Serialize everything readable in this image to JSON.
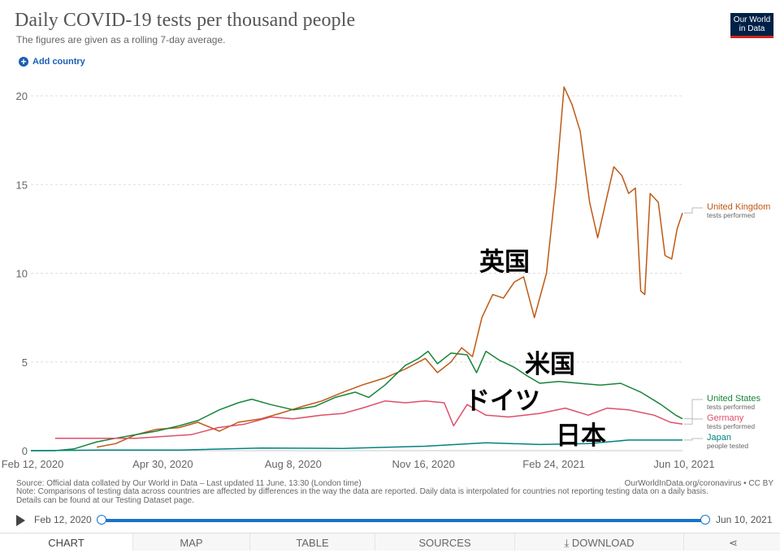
{
  "header": {
    "title": "Daily COVID-19 tests per thousand people",
    "subtitle": "The figures are given as a rolling 7-day average.",
    "logo_line1": "Our World",
    "logo_line2": "in Data",
    "add_country": "Add country"
  },
  "chart_data": {
    "type": "line",
    "title": "Daily COVID-19 tests per thousand people",
    "subtitle": "The figures are given as a rolling 7-day average.",
    "x_ticks": [
      "Feb 12, 2020",
      "Apr 30, 2020",
      "Aug 8, 2020",
      "Nov 16, 2020",
      "Feb 24, 2021",
      "Jun 10, 2021"
    ],
    "xlim": [
      "2020-02-12",
      "2021-06-10"
    ],
    "y_ticks": [
      "0",
      "5",
      "10",
      "15",
      "20"
    ],
    "ylim": [
      0,
      22
    ],
    "grid": "horizontal dotted",
    "series": [
      {
        "name": "United Kingdom",
        "sublabel": "tests performed",
        "color": "#be5915",
        "points": [
          [
            "2020-04-01",
            0.2
          ],
          [
            "2020-04-15",
            0.4
          ],
          [
            "2020-04-30",
            0.9
          ],
          [
            "2020-05-15",
            1.2
          ],
          [
            "2020-06-01",
            1.3
          ],
          [
            "2020-06-15",
            1.6
          ],
          [
            "2020-07-01",
            1.1
          ],
          [
            "2020-07-15",
            1.6
          ],
          [
            "2020-08-01",
            1.8
          ],
          [
            "2020-08-15",
            2.1
          ],
          [
            "2020-09-01",
            2.5
          ],
          [
            "2020-09-15",
            2.8
          ],
          [
            "2020-10-01",
            3.3
          ],
          [
            "2020-10-15",
            3.7
          ],
          [
            "2020-11-01",
            4.1
          ],
          [
            "2020-11-16",
            4.6
          ],
          [
            "2020-12-01",
            5.2
          ],
          [
            "2020-12-10",
            4.4
          ],
          [
            "2020-12-20",
            5.0
          ],
          [
            "2020-12-28",
            5.8
          ],
          [
            "2021-01-05",
            5.3
          ],
          [
            "2021-01-12",
            7.5
          ],
          [
            "2021-01-20",
            8.8
          ],
          [
            "2021-01-28",
            8.6
          ],
          [
            "2021-02-05",
            9.5
          ],
          [
            "2021-02-12",
            9.8
          ],
          [
            "2021-02-20",
            7.5
          ],
          [
            "2021-03-01",
            10.0
          ],
          [
            "2021-03-08",
            15.0
          ],
          [
            "2021-03-14",
            20.5
          ],
          [
            "2021-03-20",
            19.5
          ],
          [
            "2021-03-26",
            18.0
          ],
          [
            "2021-04-02",
            14.0
          ],
          [
            "2021-04-08",
            12.0
          ],
          [
            "2021-04-14",
            14.0
          ],
          [
            "2021-04-20",
            16.0
          ],
          [
            "2021-04-26",
            15.5
          ],
          [
            "2021-05-01",
            14.5
          ],
          [
            "2021-05-06",
            14.8
          ],
          [
            "2021-05-10",
            9.0
          ],
          [
            "2021-05-13",
            8.8
          ],
          [
            "2021-05-17",
            14.5
          ],
          [
            "2021-05-23",
            14.0
          ],
          [
            "2021-05-28",
            11.0
          ],
          [
            "2021-06-02",
            10.8
          ],
          [
            "2021-06-06",
            12.5
          ],
          [
            "2021-06-10",
            13.4
          ]
        ]
      },
      {
        "name": "United States",
        "sublabel": "tests performed",
        "color": "#18843a",
        "points": [
          [
            "2020-02-12",
            0.0
          ],
          [
            "2020-03-01",
            0.0
          ],
          [
            "2020-03-15",
            0.1
          ],
          [
            "2020-04-01",
            0.5
          ],
          [
            "2020-04-15",
            0.7
          ],
          [
            "2020-04-30",
            0.9
          ],
          [
            "2020-05-15",
            1.1
          ],
          [
            "2020-06-01",
            1.4
          ],
          [
            "2020-06-15",
            1.7
          ],
          [
            "2020-07-01",
            2.3
          ],
          [
            "2020-07-15",
            2.7
          ],
          [
            "2020-07-25",
            2.9
          ],
          [
            "2020-08-08",
            2.6
          ],
          [
            "2020-08-25",
            2.3
          ],
          [
            "2020-09-10",
            2.5
          ],
          [
            "2020-09-25",
            3.0
          ],
          [
            "2020-10-10",
            3.3
          ],
          [
            "2020-10-20",
            3.0
          ],
          [
            "2020-11-01",
            3.7
          ],
          [
            "2020-11-16",
            4.8
          ],
          [
            "2020-11-26",
            5.2
          ],
          [
            "2020-12-03",
            5.6
          ],
          [
            "2020-12-10",
            4.9
          ],
          [
            "2020-12-20",
            5.5
          ],
          [
            "2021-01-01",
            5.4
          ],
          [
            "2021-01-08",
            4.4
          ],
          [
            "2021-01-15",
            5.6
          ],
          [
            "2021-01-25",
            5.1
          ],
          [
            "2021-02-05",
            4.7
          ],
          [
            "2021-02-15",
            4.2
          ],
          [
            "2021-02-24",
            3.8
          ],
          [
            "2021-03-10",
            3.9
          ],
          [
            "2021-03-25",
            3.8
          ],
          [
            "2021-04-10",
            3.7
          ],
          [
            "2021-04-25",
            3.8
          ],
          [
            "2021-05-10",
            3.3
          ],
          [
            "2021-05-25",
            2.6
          ],
          [
            "2021-06-05",
            2.0
          ],
          [
            "2021-06-10",
            1.8
          ]
        ]
      },
      {
        "name": "Germany",
        "sublabel": "tests performed",
        "color": "#de4e6a",
        "points": [
          [
            "2020-03-01",
            0.7
          ],
          [
            "2020-03-20",
            0.7
          ],
          [
            "2020-04-10",
            0.7
          ],
          [
            "2020-04-30",
            0.7
          ],
          [
            "2020-05-20",
            0.8
          ],
          [
            "2020-06-10",
            0.9
          ],
          [
            "2020-06-30",
            1.3
          ],
          [
            "2020-07-20",
            1.5
          ],
          [
            "2020-08-08",
            1.9
          ],
          [
            "2020-08-25",
            1.8
          ],
          [
            "2020-09-15",
            2.0
          ],
          [
            "2020-10-01",
            2.1
          ],
          [
            "2020-10-15",
            2.4
          ],
          [
            "2020-11-01",
            2.8
          ],
          [
            "2020-11-16",
            2.7
          ],
          [
            "2020-12-01",
            2.8
          ],
          [
            "2020-12-15",
            2.7
          ],
          [
            "2020-12-22",
            1.4
          ],
          [
            "2021-01-01",
            2.6
          ],
          [
            "2021-01-15",
            2.0
          ],
          [
            "2021-02-01",
            1.9
          ],
          [
            "2021-02-24",
            2.1
          ],
          [
            "2021-03-15",
            2.4
          ],
          [
            "2021-04-01",
            2.0
          ],
          [
            "2021-04-15",
            2.4
          ],
          [
            "2021-05-01",
            2.3
          ],
          [
            "2021-05-20",
            2.0
          ],
          [
            "2021-06-01",
            1.6
          ],
          [
            "2021-06-10",
            1.5
          ]
        ]
      },
      {
        "name": "Japan",
        "sublabel": "people tested",
        "color": "#00847e",
        "points": [
          [
            "2020-02-12",
            0.0
          ],
          [
            "2020-04-01",
            0.03
          ],
          [
            "2020-06-01",
            0.03
          ],
          [
            "2020-08-01",
            0.15
          ],
          [
            "2020-10-01",
            0.13
          ],
          [
            "2020-12-01",
            0.25
          ],
          [
            "2021-01-15",
            0.45
          ],
          [
            "2021-02-24",
            0.35
          ],
          [
            "2021-04-01",
            0.4
          ],
          [
            "2021-05-01",
            0.6
          ],
          [
            "2021-06-10",
            0.6
          ]
        ]
      }
    ]
  },
  "annotations": {
    "uk": "英国",
    "us": "米国",
    "de": "ドイツ",
    "jp": "日本"
  },
  "footer": {
    "source": "Source: Official data collated by Our World in Data – Last updated 11 June, 13:30 (London time)",
    "source_right": "OurWorldInData.org/coronavirus • CC BY",
    "note_line1": "Note: Comparisons of testing data across countries are affected by differences in the way the data are reported. Daily data is interpolated for countries not reporting testing data on a daily basis.",
    "note_line2": "Details can be found at our Testing Dataset page."
  },
  "timeline": {
    "start": "Feb 12, 2020",
    "end": "Jun 10, 2021"
  },
  "tabs": {
    "chart": "CHART",
    "map": "MAP",
    "table": "TABLE",
    "sources": "SOURCES",
    "download": "DOWNLOAD"
  }
}
